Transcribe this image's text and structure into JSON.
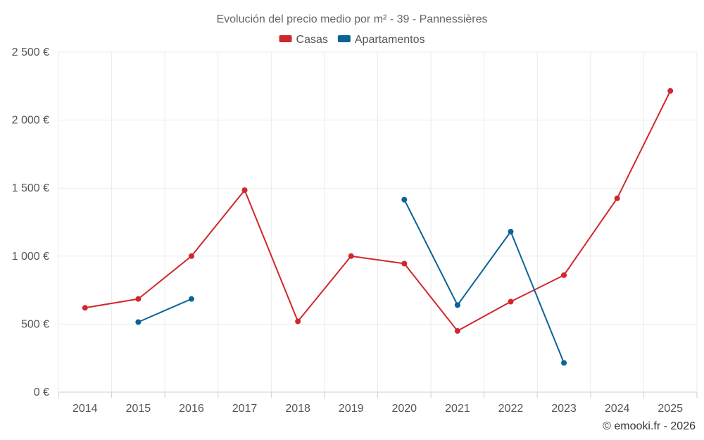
{
  "chart_data": {
    "type": "line",
    "title": "Evolución del precio medio por m² - 39 - Pannessières",
    "categories": [
      "2014",
      "2015",
      "2016",
      "2017",
      "2018",
      "2019",
      "2020",
      "2021",
      "2022",
      "2023",
      "2024",
      "2025"
    ],
    "series": [
      {
        "name": "Casas",
        "color": "#d0272d",
        "values": [
          620,
          685,
          1000,
          1485,
          520,
          1000,
          945,
          450,
          665,
          860,
          1425,
          2215
        ]
      },
      {
        "name": "Apartamentos",
        "color": "#0a6496",
        "values": [
          null,
          515,
          685,
          null,
          null,
          null,
          1415,
          640,
          1180,
          215,
          null,
          null
        ]
      }
    ],
    "yticks": [
      0,
      500,
      1000,
      1500,
      2000,
      2500
    ],
    "ytick_labels": [
      "0 €",
      "500 €",
      "1 000 €",
      "1 500 €",
      "2 000 €",
      "2 500 €"
    ],
    "ylim": [
      0,
      2500
    ],
    "xlabel": "",
    "ylabel": "",
    "grid": true,
    "legend_position": "top-center"
  },
  "credit": "© emooki.fr - 2026"
}
